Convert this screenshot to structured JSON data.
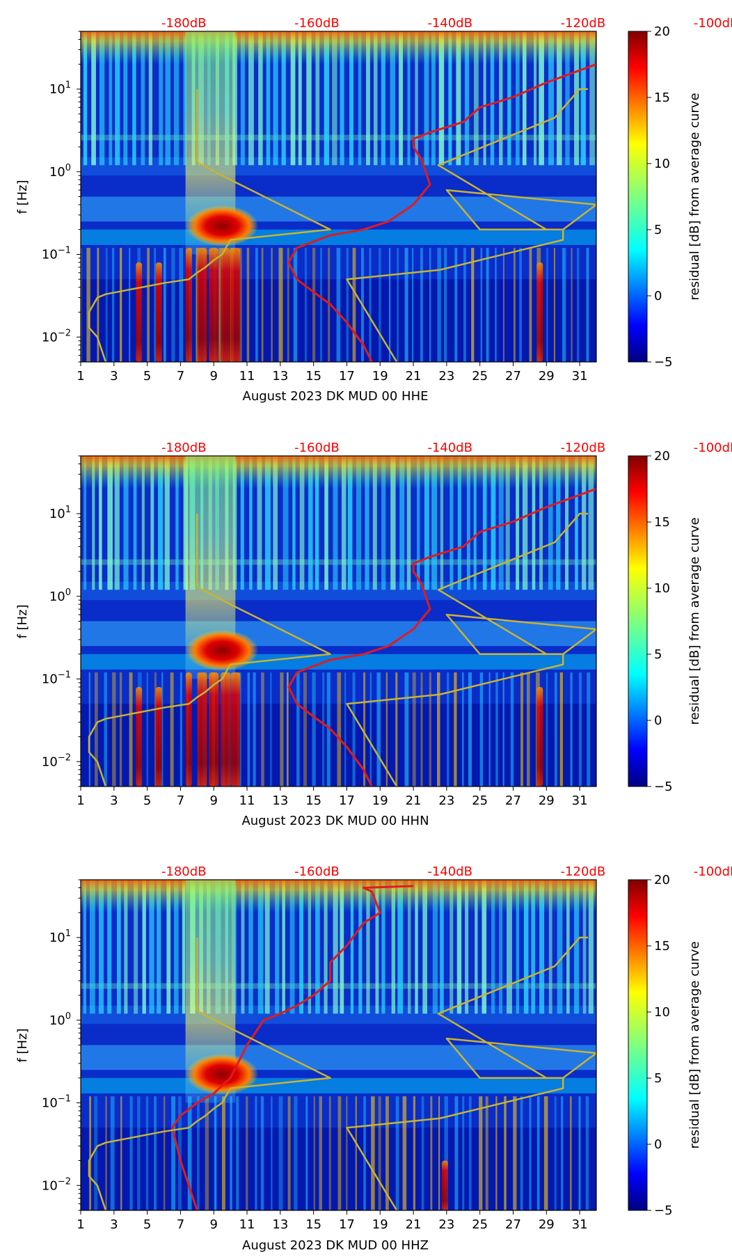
{
  "colors": {
    "red_curve": "#e31a1c",
    "model_curve": "#c8b432",
    "db_label": "#ff0000"
  },
  "colorbar": {
    "label": "residual [dB] from average curve",
    "min": -5,
    "max": 20,
    "ticks": [
      -5,
      0,
      5,
      10,
      15,
      20
    ],
    "colormap": "jet"
  },
  "chart_data": [
    {
      "type": "heatmap",
      "xlabel": "August 2023 DK MUD 00 HHE",
      "ylabel": "f [Hz]",
      "x_ticks": [
        1,
        3,
        5,
        7,
        9,
        11,
        13,
        15,
        17,
        19,
        21,
        23,
        25,
        27,
        29,
        31
      ],
      "xlim": [
        1,
        32
      ],
      "ylim": [
        0.005,
        50
      ],
      "yscale": "log",
      "y_ticks": [
        {
          "value": 0.01,
          "base": "10",
          "exp": "−2"
        },
        {
          "value": 0.1,
          "base": "10",
          "exp": "−1"
        },
        {
          "value": 1,
          "base": "10",
          "exp": "0"
        },
        {
          "value": 10,
          "base": "10",
          "exp": "1"
        }
      ],
      "top_labels": [
        "-180dB",
        "-160dB",
        "-140dB",
        "-120dB",
        "-100dB"
      ],
      "top_label_x": [
        7.2,
        15.2,
        23.2,
        31.2,
        39.2
      ],
      "hot_spots": [
        {
          "day": 9.5,
          "f_lo": 0.14,
          "f_hi": 0.35
        },
        {
          "day": 8.3,
          "f_lo": 0.005,
          "f_hi": 0.12
        },
        {
          "day": 9.0,
          "f_lo": 0.005,
          "f_hi": 0.12
        },
        {
          "day": 9.7,
          "f_lo": 0.005,
          "f_hi": 0.12
        },
        {
          "day": 10.3,
          "f_lo": 0.005,
          "f_hi": 0.12
        },
        {
          "day": 4.5,
          "f_lo": 0.005,
          "f_hi": 0.08
        },
        {
          "day": 5.7,
          "f_lo": 0.005,
          "f_hi": 0.08
        },
        {
          "day": 7.5,
          "f_lo": 0.005,
          "f_hi": 0.12
        },
        {
          "day": 28.6,
          "f_lo": 0.005,
          "f_hi": 0.08
        }
      ],
      "series": [
        {
          "x": [
            48,
            37,
            34,
            33,
            32,
            29,
            27,
            25,
            24,
            22,
            21,
            21,
            21.5,
            22,
            21,
            19.5,
            18,
            16,
            14,
            13.5,
            14,
            15,
            16,
            17,
            18,
            18.5
          ],
          "y": [
            45,
            38,
            36,
            30,
            20,
            12,
            8,
            6,
            4,
            3,
            2.5,
            2,
            1.4,
            0.7,
            0.4,
            0.25,
            0.2,
            0.17,
            0.12,
            0.08,
            0.05,
            0.035,
            0.025,
            0.015,
            0.008,
            0.005
          ]
        },
        {
          "x": [
            2.5,
            2,
            1.5,
            1.5,
            2,
            2.5,
            6,
            7.5,
            8,
            8.5,
            9,
            9.5,
            10,
            16,
            13,
            10,
            8,
            8,
            8
          ],
          "y": [
            0.005,
            0.01,
            0.013,
            0.02,
            0.03,
            0.033,
            0.045,
            0.05,
            0.06,
            0.07,
            0.085,
            0.1,
            0.15,
            0.2,
            0.4,
            0.8,
            1.3,
            3,
            10
          ]
        },
        {
          "x": [
            20,
            17,
            22.6,
            30,
            30,
            25,
            23,
            32,
            30,
            25,
            25.5,
            29,
            22.5,
            29.5,
            31,
            31.5
          ],
          "y": [
            0.005,
            0.05,
            0.065,
            0.15,
            0.2,
            0.2,
            0.6,
            0.4,
            0.2,
            0.2,
            0.2,
            0.2,
            1.2,
            4.5,
            10,
            10
          ]
        }
      ]
    },
    {
      "type": "heatmap",
      "xlabel": "August 2023 DK MUD 00 HHN",
      "ylabel": "f [Hz]",
      "x_ticks": [
        1,
        3,
        5,
        7,
        9,
        11,
        13,
        15,
        17,
        19,
        21,
        23,
        25,
        27,
        29,
        31
      ],
      "xlim": [
        1,
        32
      ],
      "ylim": [
        0.005,
        50
      ],
      "yscale": "log",
      "y_ticks": [
        {
          "value": 0.01,
          "base": "10",
          "exp": "−2"
        },
        {
          "value": 0.1,
          "base": "10",
          "exp": "−1"
        },
        {
          "value": 1,
          "base": "10",
          "exp": "0"
        },
        {
          "value": 10,
          "base": "10",
          "exp": "1"
        }
      ],
      "top_labels": [
        "-180dB",
        "-160dB",
        "-140dB",
        "-120dB",
        "-100dB"
      ],
      "top_label_x": [
        7.2,
        15.2,
        23.2,
        31.2,
        39.2
      ],
      "hot_spots": [
        {
          "day": 9.5,
          "f_lo": 0.14,
          "f_hi": 0.35
        },
        {
          "day": 8.3,
          "f_lo": 0.005,
          "f_hi": 0.12
        },
        {
          "day": 9.0,
          "f_lo": 0.005,
          "f_hi": 0.12
        },
        {
          "day": 9.7,
          "f_lo": 0.005,
          "f_hi": 0.12
        },
        {
          "day": 10.3,
          "f_lo": 0.005,
          "f_hi": 0.12
        },
        {
          "day": 4.5,
          "f_lo": 0.005,
          "f_hi": 0.08
        },
        {
          "day": 5.7,
          "f_lo": 0.005,
          "f_hi": 0.08
        },
        {
          "day": 7.5,
          "f_lo": 0.005,
          "f_hi": 0.12
        },
        {
          "day": 28.6,
          "f_lo": 0.005,
          "f_hi": 0.08
        }
      ],
      "series": [
        {
          "x": [
            48,
            37,
            34,
            33,
            32,
            29,
            27,
            25,
            24,
            22,
            21,
            21,
            21.5,
            22,
            21,
            19.5,
            18,
            16,
            14,
            13.5,
            14,
            15,
            16,
            17,
            18,
            18.5
          ],
          "y": [
            45,
            38,
            36,
            30,
            20,
            12,
            8,
            6,
            4,
            3,
            2.5,
            2,
            1.4,
            0.7,
            0.4,
            0.25,
            0.2,
            0.17,
            0.12,
            0.08,
            0.05,
            0.035,
            0.025,
            0.015,
            0.008,
            0.005
          ]
        },
        {
          "x": [
            2.5,
            2,
            1.5,
            1.5,
            2,
            2.5,
            6,
            7.5,
            8,
            8.5,
            9,
            9.5,
            10,
            16,
            13,
            10,
            8,
            8,
            8
          ],
          "y": [
            0.005,
            0.01,
            0.013,
            0.02,
            0.03,
            0.033,
            0.045,
            0.05,
            0.06,
            0.07,
            0.085,
            0.1,
            0.15,
            0.2,
            0.4,
            0.8,
            1.3,
            3,
            10
          ]
        },
        {
          "x": [
            20,
            17,
            22.6,
            30,
            30,
            25,
            23,
            32,
            30,
            25,
            25.5,
            29,
            22.5,
            29.5,
            31,
            31.5
          ],
          "y": [
            0.005,
            0.05,
            0.065,
            0.15,
            0.2,
            0.2,
            0.6,
            0.4,
            0.2,
            0.2,
            0.2,
            0.2,
            1.2,
            4.5,
            10,
            10
          ]
        }
      ]
    },
    {
      "type": "heatmap",
      "xlabel": "August 2023 DK MUD 00 HHZ",
      "ylabel": "f [Hz]",
      "x_ticks": [
        1,
        3,
        5,
        7,
        9,
        11,
        13,
        15,
        17,
        19,
        21,
        23,
        25,
        27,
        29,
        31
      ],
      "xlim": [
        1,
        32
      ],
      "ylim": [
        0.005,
        50
      ],
      "yscale": "log",
      "y_ticks": [
        {
          "value": 0.01,
          "base": "10",
          "exp": "−2"
        },
        {
          "value": 0.1,
          "base": "10",
          "exp": "−1"
        },
        {
          "value": 1,
          "base": "10",
          "exp": "0"
        },
        {
          "value": 10,
          "base": "10",
          "exp": "1"
        }
      ],
      "top_labels": [
        "-180dB",
        "-160dB",
        "-140dB",
        "-120dB",
        "-100dB"
      ],
      "top_label_x": [
        7.2,
        15.2,
        23.2,
        31.2,
        39.2
      ],
      "hot_spots": [
        {
          "day": 9.5,
          "f_lo": 0.14,
          "f_hi": 0.35
        },
        {
          "day": 22.9,
          "f_lo": 0.005,
          "f_hi": 0.02
        }
      ],
      "series": [
        {
          "x": [
            21,
            18,
            18.5,
            19,
            18,
            17,
            16,
            16,
            15,
            14,
            13,
            12,
            11,
            10,
            9,
            8,
            7,
            6.5,
            7,
            8
          ],
          "y": [
            42,
            40,
            36,
            20,
            15,
            8,
            5,
            3,
            2,
            1.5,
            1.2,
            1,
            0.5,
            0.2,
            0.13,
            0.1,
            0.07,
            0.05,
            0.02,
            0.005
          ]
        },
        {
          "x": [
            2.5,
            2,
            1.5,
            1.5,
            2,
            2.5,
            6,
            7.5,
            8,
            8.5,
            9,
            9.5,
            10,
            16,
            13,
            10,
            8,
            8,
            8
          ],
          "y": [
            0.005,
            0.01,
            0.013,
            0.02,
            0.03,
            0.033,
            0.045,
            0.05,
            0.06,
            0.07,
            0.085,
            0.1,
            0.15,
            0.2,
            0.4,
            0.8,
            1.3,
            3,
            10
          ]
        },
        {
          "x": [
            20,
            17,
            22.6,
            30,
            30,
            25,
            23,
            32,
            30,
            25,
            25.5,
            29,
            22.5,
            29.5,
            31,
            31.5
          ],
          "y": [
            0.005,
            0.05,
            0.065,
            0.15,
            0.2,
            0.2,
            0.6,
            0.4,
            0.2,
            0.2,
            0.2,
            0.2,
            1.2,
            4.5,
            10,
            10
          ]
        }
      ]
    }
  ]
}
